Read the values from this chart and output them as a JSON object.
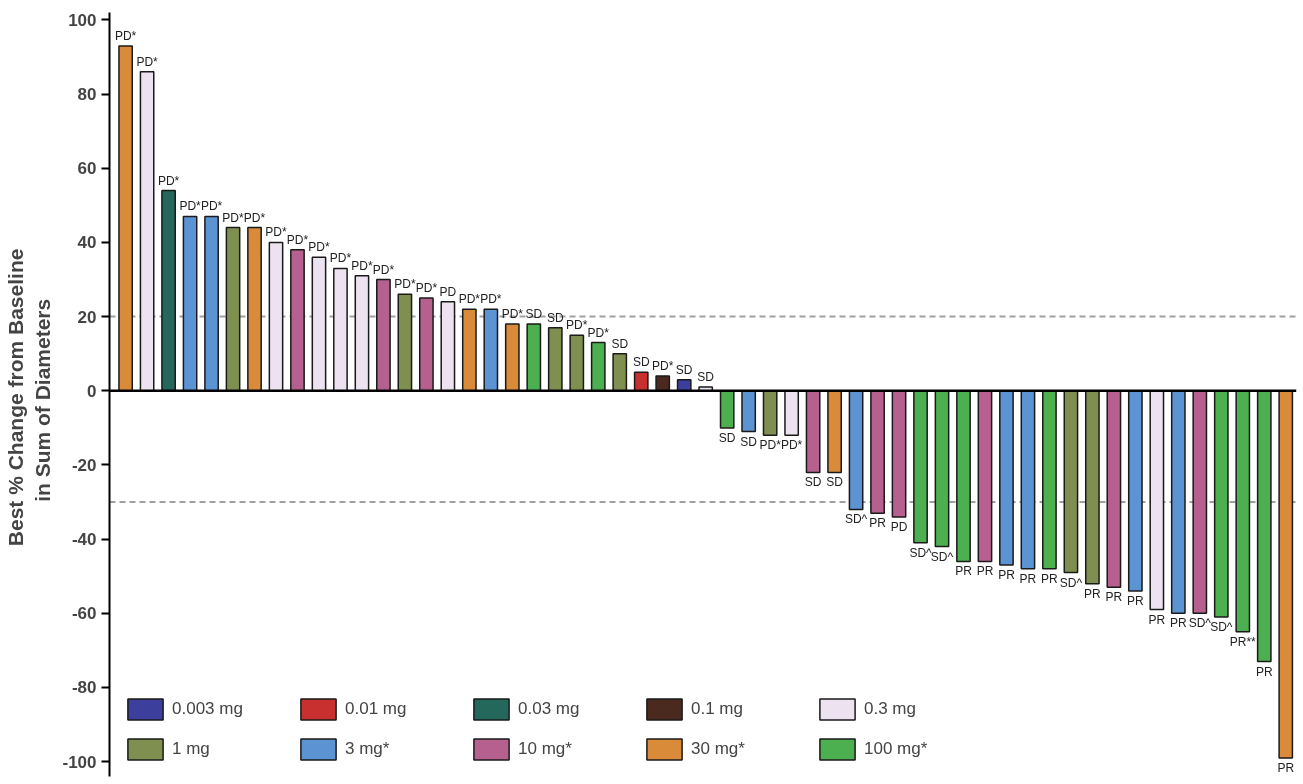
{
  "chart_data": {
    "type": "bar",
    "ylabel": "Best % Change from  Baseline\nin  Sum of  Diameters",
    "categories": [
      null,
      null,
      null,
      null,
      null,
      null,
      null,
      null,
      null,
      null,
      null,
      null,
      null,
      null,
      null,
      null,
      null,
      null,
      null,
      null,
      null,
      null,
      null,
      null,
      null,
      null,
      null,
      null,
      null,
      null,
      null,
      null,
      null,
      null,
      null,
      null,
      null,
      null,
      null,
      null,
      null,
      null,
      null,
      null,
      null,
      null,
      null,
      null,
      null,
      null,
      null,
      null,
      null,
      null,
      null
    ],
    "series": [
      {
        "name": "0.003 mg",
        "color": "#3c3f9c",
        "values": [
          null,
          null,
          null,
          null,
          null,
          null,
          null,
          null,
          null,
          null,
          null,
          null,
          null,
          null,
          null,
          null,
          null,
          null,
          null,
          null,
          null,
          null,
          null,
          null,
          null,
          null,
          3,
          null,
          null,
          null,
          null,
          null,
          null,
          null,
          null,
          null,
          null,
          null,
          null,
          null,
          null,
          null,
          null,
          null,
          null,
          null,
          null,
          null,
          null,
          null,
          null,
          null,
          null,
          null,
          null
        ],
        "value_labels": [
          null,
          null,
          null,
          null,
          null,
          null,
          null,
          null,
          null,
          null,
          null,
          null,
          null,
          null,
          null,
          null,
          null,
          null,
          null,
          null,
          null,
          null,
          null,
          null,
          null,
          null,
          "SD",
          null,
          null,
          null,
          null,
          null,
          null,
          null,
          null,
          null,
          null,
          null,
          null,
          null,
          null,
          null,
          null,
          null,
          null,
          null,
          null,
          null,
          null,
          null,
          null,
          null,
          null,
          null,
          null
        ]
      },
      {
        "name": "0.01 mg",
        "color": "#c8302f",
        "values": [
          null,
          null,
          null,
          null,
          null,
          null,
          null,
          null,
          null,
          null,
          null,
          null,
          null,
          null,
          null,
          null,
          null,
          null,
          null,
          null,
          null,
          null,
          null,
          null,
          5,
          null,
          null,
          null,
          null,
          null,
          null,
          null,
          null,
          null,
          null,
          null,
          null,
          null,
          null,
          null,
          null,
          null,
          null,
          null,
          null,
          null,
          null,
          null,
          null,
          null,
          null,
          null,
          null,
          null,
          null
        ],
        "value_labels": [
          null,
          null,
          null,
          null,
          null,
          null,
          null,
          null,
          null,
          null,
          null,
          null,
          null,
          null,
          null,
          null,
          null,
          null,
          null,
          null,
          null,
          null,
          null,
          null,
          "SD",
          null,
          null,
          null,
          null,
          null,
          null,
          null,
          null,
          null,
          null,
          null,
          null,
          null,
          null,
          null,
          null,
          null,
          null,
          null,
          null,
          null,
          null,
          null,
          null,
          null,
          null,
          null,
          null,
          null,
          null
        ]
      },
      {
        "name": "0.03 mg",
        "color": "#23685a",
        "values": [
          null,
          null,
          54,
          null,
          null,
          null,
          null,
          null,
          null,
          null,
          null,
          null,
          null,
          null,
          null,
          null,
          null,
          null,
          null,
          null,
          null,
          null,
          null,
          null,
          null,
          null,
          null,
          null,
          null,
          null,
          null,
          null,
          null,
          null,
          null,
          null,
          null,
          null,
          null,
          null,
          null,
          null,
          null,
          null,
          null,
          null,
          null,
          null,
          null,
          null,
          null,
          null,
          null,
          null,
          null
        ],
        "value_labels": [
          null,
          null,
          "PD*",
          null,
          null,
          null,
          null,
          null,
          null,
          null,
          null,
          null,
          null,
          null,
          null,
          null,
          null,
          null,
          null,
          null,
          null,
          null,
          null,
          null,
          null,
          null,
          null,
          null,
          null,
          null,
          null,
          null,
          null,
          null,
          null,
          null,
          null,
          null,
          null,
          null,
          null,
          null,
          null,
          null,
          null,
          null,
          null,
          null,
          null,
          null,
          null,
          null,
          null,
          null,
          null
        ]
      },
      {
        "name": "0.1 mg",
        "color": "#4a2a1e",
        "values": [
          null,
          null,
          null,
          null,
          null,
          null,
          null,
          null,
          null,
          null,
          null,
          null,
          null,
          null,
          null,
          null,
          null,
          null,
          null,
          null,
          null,
          null,
          null,
          null,
          null,
          4,
          null,
          null,
          null,
          null,
          null,
          null,
          null,
          null,
          null,
          null,
          null,
          null,
          null,
          null,
          null,
          null,
          null,
          null,
          null,
          null,
          null,
          null,
          null,
          null,
          null,
          null,
          null,
          null,
          null
        ],
        "value_labels": [
          null,
          null,
          null,
          null,
          null,
          null,
          null,
          null,
          null,
          null,
          null,
          null,
          null,
          null,
          null,
          null,
          null,
          null,
          null,
          null,
          null,
          null,
          null,
          null,
          null,
          "PD*",
          null,
          null,
          null,
          null,
          null,
          null,
          null,
          null,
          null,
          null,
          null,
          null,
          null,
          null,
          null,
          null,
          null,
          null,
          null,
          null,
          null,
          null,
          null,
          null,
          null,
          null,
          null,
          null,
          null
        ]
      },
      {
        "name": "0.3 mg",
        "color": "#ece2f0",
        "values": [
          null,
          86,
          null,
          null,
          null,
          null,
          null,
          40,
          null,
          36,
          33,
          31,
          null,
          null,
          null,
          24,
          null,
          null,
          null,
          null,
          null,
          null,
          null,
          null,
          null,
          null,
          null,
          1,
          null,
          null,
          null,
          -12,
          null,
          null,
          null,
          null,
          null,
          null,
          null,
          null,
          null,
          null,
          null,
          null,
          null,
          null,
          null,
          null,
          -59,
          null,
          null,
          null,
          null,
          null,
          null
        ],
        "value_labels": [
          null,
          "PD*",
          null,
          null,
          null,
          null,
          null,
          "PD*",
          null,
          "PD*",
          "PD*",
          "PD*",
          null,
          null,
          null,
          "PD",
          null,
          null,
          null,
          null,
          null,
          null,
          null,
          null,
          null,
          null,
          null,
          "SD",
          null,
          null,
          null,
          "PD*",
          null,
          null,
          null,
          null,
          null,
          null,
          null,
          null,
          null,
          null,
          null,
          null,
          null,
          null,
          null,
          null,
          "PR",
          null,
          null,
          null,
          null,
          null,
          null
        ]
      },
      {
        "name": "1 mg",
        "color": "#7f8f4f",
        "values": [
          null,
          null,
          null,
          null,
          null,
          44,
          null,
          null,
          null,
          null,
          null,
          null,
          null,
          26,
          null,
          null,
          null,
          null,
          null,
          null,
          17,
          15,
          null,
          10,
          null,
          null,
          null,
          null,
          null,
          null,
          -12,
          null,
          null,
          null,
          null,
          null,
          null,
          null,
          null,
          null,
          null,
          null,
          null,
          null,
          -49,
          -52,
          null,
          null,
          null,
          null,
          null,
          null,
          null,
          null,
          null
        ],
        "value_labels": [
          null,
          null,
          null,
          null,
          null,
          "PD*",
          null,
          null,
          null,
          null,
          null,
          null,
          null,
          "PD*",
          null,
          null,
          null,
          null,
          null,
          null,
          "SD",
          "PD*",
          null,
          "SD",
          null,
          null,
          null,
          null,
          null,
          null,
          "PD*",
          null,
          null,
          null,
          null,
          null,
          null,
          null,
          null,
          null,
          null,
          null,
          null,
          null,
          "SD^",
          "PR",
          null,
          null,
          null,
          null,
          null,
          null,
          null,
          null,
          null
        ]
      },
      {
        "name": "3 mg*",
        "color": "#5b93d3",
        "values": [
          null,
          null,
          null,
          47,
          47,
          null,
          null,
          null,
          null,
          null,
          null,
          null,
          null,
          null,
          null,
          null,
          null,
          22,
          null,
          null,
          null,
          null,
          null,
          null,
          null,
          null,
          null,
          null,
          null,
          -11,
          null,
          null,
          null,
          null,
          -32,
          null,
          null,
          null,
          null,
          null,
          null,
          -47,
          -48,
          null,
          null,
          null,
          null,
          -54,
          null,
          -60,
          null,
          null,
          null,
          null,
          null
        ],
        "value_labels": [
          null,
          null,
          null,
          "PD*",
          "PD*",
          null,
          null,
          null,
          null,
          null,
          null,
          null,
          null,
          null,
          null,
          null,
          null,
          "PD*",
          null,
          null,
          null,
          null,
          null,
          null,
          null,
          null,
          null,
          null,
          null,
          "SD",
          null,
          null,
          null,
          null,
          "SD^",
          null,
          null,
          null,
          null,
          null,
          null,
          "PR",
          "PR",
          null,
          null,
          null,
          null,
          "PR",
          null,
          "PR",
          null,
          null,
          null,
          null,
          null
        ]
      },
      {
        "name": "10 mg*",
        "color": "#b5608f",
        "values": [
          null,
          null,
          null,
          null,
          null,
          null,
          null,
          null,
          38,
          null,
          null,
          null,
          30,
          null,
          25,
          null,
          null,
          null,
          null,
          null,
          null,
          null,
          null,
          null,
          null,
          null,
          null,
          null,
          null,
          null,
          null,
          null,
          -22,
          null,
          null,
          -33,
          -34,
          null,
          null,
          null,
          -46,
          null,
          null,
          null,
          null,
          null,
          -53,
          null,
          null,
          null,
          -60,
          null,
          null,
          null,
          null
        ],
        "value_labels": [
          null,
          null,
          null,
          null,
          null,
          null,
          null,
          null,
          "PD*",
          null,
          null,
          null,
          "PD*",
          null,
          "PD*",
          null,
          null,
          null,
          null,
          null,
          null,
          null,
          null,
          null,
          null,
          null,
          null,
          null,
          null,
          null,
          null,
          null,
          "SD",
          null,
          null,
          "PR",
          "PD",
          null,
          null,
          null,
          "PR",
          null,
          null,
          null,
          null,
          null,
          "PR",
          null,
          null,
          null,
          "SD^",
          null,
          null,
          null,
          null
        ]
      },
      {
        "name": "30 mg*",
        "color": "#d98b3a",
        "values": [
          93,
          null,
          null,
          null,
          null,
          null,
          44,
          null,
          null,
          null,
          null,
          null,
          null,
          null,
          null,
          null,
          22,
          null,
          18,
          null,
          null,
          null,
          null,
          null,
          null,
          null,
          null,
          null,
          null,
          null,
          null,
          null,
          null,
          -22,
          null,
          null,
          null,
          null,
          null,
          null,
          null,
          null,
          null,
          null,
          null,
          null,
          null,
          null,
          null,
          null,
          null,
          null,
          null,
          null,
          -99
        ],
        "value_labels": [
          "PD*",
          null,
          null,
          null,
          null,
          null,
          "PD*",
          null,
          null,
          null,
          null,
          null,
          null,
          null,
          null,
          null,
          "PD*",
          null,
          "PD*",
          null,
          null,
          null,
          null,
          null,
          null,
          null,
          null,
          null,
          null,
          null,
          null,
          null,
          null,
          "SD",
          null,
          null,
          null,
          null,
          null,
          null,
          null,
          null,
          null,
          null,
          null,
          null,
          null,
          null,
          null,
          null,
          null,
          null,
          null,
          null,
          "PR"
        ]
      },
      {
        "name": "100 mg*",
        "color": "#4caf50",
        "values": [
          null,
          null,
          null,
          null,
          null,
          null,
          null,
          null,
          null,
          null,
          null,
          null,
          null,
          null,
          null,
          null,
          null,
          null,
          null,
          18,
          null,
          null,
          13,
          null,
          null,
          null,
          null,
          null,
          -10,
          null,
          null,
          null,
          null,
          null,
          null,
          null,
          null,
          -41,
          -42,
          -46,
          null,
          null,
          null,
          -48,
          null,
          null,
          null,
          null,
          null,
          null,
          null,
          -61,
          -65,
          -73,
          null
        ],
        "value_labels": [
          null,
          null,
          null,
          null,
          null,
          null,
          null,
          null,
          null,
          null,
          null,
          null,
          null,
          null,
          null,
          null,
          null,
          null,
          null,
          "SD",
          null,
          null,
          "PD*",
          null,
          null,
          null,
          null,
          null,
          "SD",
          null,
          null,
          null,
          null,
          null,
          null,
          null,
          null,
          "SD^",
          "SD^",
          "PR",
          null,
          null,
          null,
          "PR",
          null,
          null,
          null,
          null,
          null,
          null,
          null,
          "SD^",
          "PR**",
          "PR",
          null
        ]
      }
    ],
    "ylim": [
      -104,
      102
    ],
    "yticks": [
      -100,
      -80,
      -60,
      -40,
      -20,
      0,
      20,
      40,
      60,
      80,
      100
    ],
    "ref_lines": [
      {
        "axis": "y",
        "value": 20,
        "color": "#a0a0a0",
        "line_style": "dashed"
      },
      {
        "axis": "y",
        "value": -30,
        "color": "#a0a0a0",
        "line_style": "dashed"
      },
      {
        "axis": "y",
        "value": 0,
        "color": "#000000",
        "line_style": "solid"
      }
    ],
    "grid": false,
    "legend": "bottom left"
  }
}
